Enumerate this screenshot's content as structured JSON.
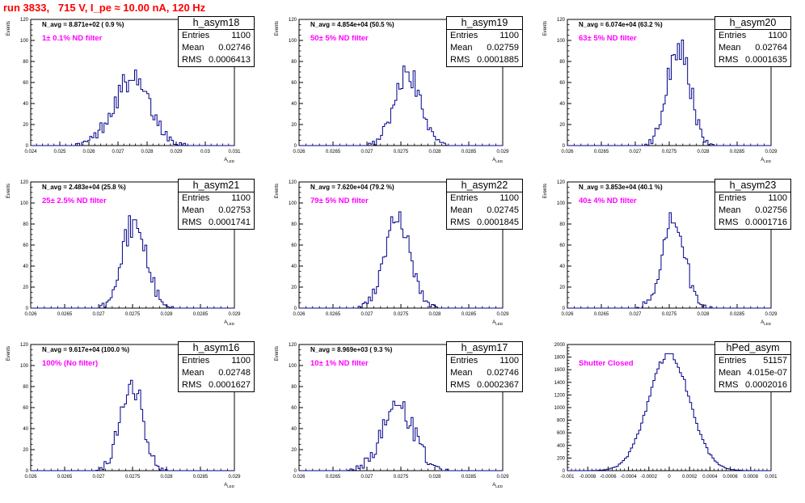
{
  "page_title": "run 3833,   715 V, I_pe ≈ 10.00 nA, 120 Hz",
  "colors": {
    "title": "#ff0000",
    "hist_line": "#00008b",
    "annotation": "#ff00ff",
    "axis": "#000000"
  },
  "stat_labels": {
    "entries": "Entries",
    "mean": "Mean",
    "rms": "RMS"
  },
  "chart_data": [
    {
      "type": "histogram",
      "name": "h_asym18",
      "ylabel": "Events",
      "xlabel": "A_{LED}",
      "navg_text": "N_avg = 8.871e+02 ( 0.9 %)",
      "filter_text": "1± 0.1% ND filter",
      "entries": "1100",
      "mean": "0.02746",
      "rms": "0.0006413",
      "xlim": [
        0.024,
        0.031
      ],
      "ylim": [
        0,
        120
      ],
      "xticks": [
        "0.024",
        "0.025",
        "0.026",
        "0.027",
        "0.028",
        "0.029",
        "0.03",
        "0.031"
      ],
      "yticks": [
        "0",
        "20",
        "40",
        "60",
        "80",
        "100",
        "120"
      ],
      "gen": {
        "mean": 0.02746,
        "sigma": 0.00064,
        "peak": 62,
        "bins": 100
      }
    },
    {
      "type": "histogram",
      "name": "h_asym19",
      "ylabel": "Events",
      "xlabel": "A_{LED}",
      "navg_text": "N_avg = 4.854e+04 (50.5 %)",
      "filter_text": "50± 5% ND filter",
      "entries": "1100",
      "mean": "0.02759",
      "rms": "0.0001885",
      "xlim": [
        0.026,
        0.029
      ],
      "ylim": [
        0,
        120
      ],
      "xticks": [
        "0.026",
        "0.0265",
        "0.027",
        "0.0275",
        "0.028",
        "0.0285",
        "0.029"
      ],
      "yticks": [
        "0",
        "20",
        "40",
        "60",
        "80",
        "100",
        "120"
      ],
      "gen": {
        "mean": 0.02759,
        "sigma": 0.00019,
        "peak": 70,
        "bins": 100
      }
    },
    {
      "type": "histogram",
      "name": "h_asym20",
      "ylabel": "Events",
      "xlabel": "A_{LED}",
      "navg_text": "N_avg = 6.074e+04 (63.2 %)",
      "filter_text": "63± 5% ND filter",
      "entries": "1100",
      "mean": "0.02764",
      "rms": "0.0001635",
      "xlim": [
        0.026,
        0.029
      ],
      "ylim": [
        0,
        120
      ],
      "xticks": [
        "0.026",
        "0.0265",
        "0.027",
        "0.0275",
        "0.028",
        "0.0285",
        "0.029"
      ],
      "yticks": [
        "0",
        "20",
        "40",
        "60",
        "80",
        "100",
        "120"
      ],
      "gen": {
        "mean": 0.02764,
        "sigma": 0.000164,
        "peak": 97,
        "bins": 100
      }
    },
    {
      "type": "histogram",
      "name": "h_asym21",
      "ylabel": "Events",
      "xlabel": "A_{LED}",
      "navg_text": "N_avg = 2.483e+04 (25.8 %)",
      "filter_text": "25± 2.5% ND filter",
      "entries": "1100",
      "mean": "0.02753",
      "rms": "0.0001741",
      "xlim": [
        0.026,
        0.029
      ],
      "ylim": [
        0,
        120
      ],
      "xticks": [
        "0.026",
        "0.0265",
        "0.027",
        "0.0275",
        "0.028",
        "0.0285",
        "0.029"
      ],
      "yticks": [
        "0",
        "20",
        "40",
        "60",
        "80",
        "100",
        "120"
      ],
      "gen": {
        "mean": 0.02753,
        "sigma": 0.000174,
        "peak": 84,
        "bins": 100
      }
    },
    {
      "type": "histogram",
      "name": "h_asym22",
      "ylabel": "Events",
      "xlabel": "A_{LED}",
      "navg_text": "N_avg = 7.620e+04 (79.2 %)",
      "filter_text": "79± 5% ND filter",
      "entries": "1100",
      "mean": "0.02745",
      "rms": "0.0001845",
      "xlim": [
        0.026,
        0.029
      ],
      "ylim": [
        0,
        120
      ],
      "xticks": [
        "0.026",
        "0.0265",
        "0.027",
        "0.0275",
        "0.028",
        "0.0285",
        "0.029"
      ],
      "yticks": [
        "0",
        "20",
        "40",
        "60",
        "80",
        "100",
        "120"
      ],
      "gen": {
        "mean": 0.02745,
        "sigma": 0.000185,
        "peak": 82,
        "bins": 100
      }
    },
    {
      "type": "histogram",
      "name": "h_asym23",
      "ylabel": "Events",
      "xlabel": "A_{LED}",
      "navg_text": "N_avg = 3.853e+04 (40.1 %)",
      "filter_text": "40± 4% ND filter",
      "entries": "1100",
      "mean": "0.02756",
      "rms": "0.0001716",
      "xlim": [
        0.026,
        0.029
      ],
      "ylim": [
        0,
        120
      ],
      "xticks": [
        "0.026",
        "0.0265",
        "0.027",
        "0.0275",
        "0.028",
        "0.0285",
        "0.029"
      ],
      "yticks": [
        "0",
        "20",
        "40",
        "60",
        "80",
        "100",
        "120"
      ],
      "gen": {
        "mean": 0.02756,
        "sigma": 0.000172,
        "peak": 81,
        "bins": 100
      }
    },
    {
      "type": "histogram",
      "name": "h_asym16",
      "ylabel": "Events",
      "xlabel": "A_{LED}",
      "navg_text": "N_avg = 9.617e+04 (100.0 %)",
      "filter_text": "100% (No filter)",
      "entries": "1100",
      "mean": "0.02748",
      "rms": "0.0001627",
      "xlim": [
        0.026,
        0.029
      ],
      "ylim": [
        0,
        120
      ],
      "xticks": [
        "0.026",
        "0.0265",
        "0.027",
        "0.0275",
        "0.028",
        "0.0285",
        "0.029"
      ],
      "yticks": [
        "0",
        "20",
        "40",
        "60",
        "80",
        "100",
        "120"
      ],
      "gen": {
        "mean": 0.02748,
        "sigma": 0.000163,
        "peak": 86,
        "bins": 100
      }
    },
    {
      "type": "histogram",
      "name": "h_asym17",
      "ylabel": "Events",
      "xlabel": "A_{LED}",
      "navg_text": "N_avg = 8.969e+03 ( 9.3 %)",
      "filter_text": "10± 1% ND filter",
      "entries": "1100",
      "mean": "0.02746",
      "rms": "0.0002367",
      "xlim": [
        0.026,
        0.029
      ],
      "ylim": [
        0,
        120
      ],
      "xticks": [
        "0.026",
        "0.0265",
        "0.027",
        "0.0275",
        "0.028",
        "0.0285",
        "0.029"
      ],
      "yticks": [
        "0",
        "20",
        "40",
        "60",
        "80",
        "100",
        "120"
      ],
      "gen": {
        "mean": 0.02746,
        "sigma": 0.000237,
        "peak": 62,
        "bins": 100
      }
    },
    {
      "type": "histogram",
      "name": "hPed_asym",
      "ylabel": "",
      "xlabel": "",
      "navg_text": "",
      "filter_text": "Shutter Closed",
      "entries": "51157",
      "mean": "4.015e-07",
      "rms": "0.0002016",
      "xlim": [
        -0.001,
        0.001
      ],
      "ylim": [
        0,
        2200
      ],
      "xticks": [
        "-0.001",
        "-0.0008",
        "-0.0006",
        "-0.0004",
        "-0.0002",
        "0",
        "0.0002",
        "0.0004",
        "0.0006",
        "0.0008",
        "0.001"
      ],
      "yticks": [
        "0",
        "200",
        "400",
        "600",
        "800",
        "1000",
        "1200",
        "1400",
        "1600",
        "1800",
        "2000"
      ],
      "gen": {
        "mean": 0.0,
        "sigma": 0.0002016,
        "peak": 2040,
        "bins": 100
      }
    }
  ]
}
